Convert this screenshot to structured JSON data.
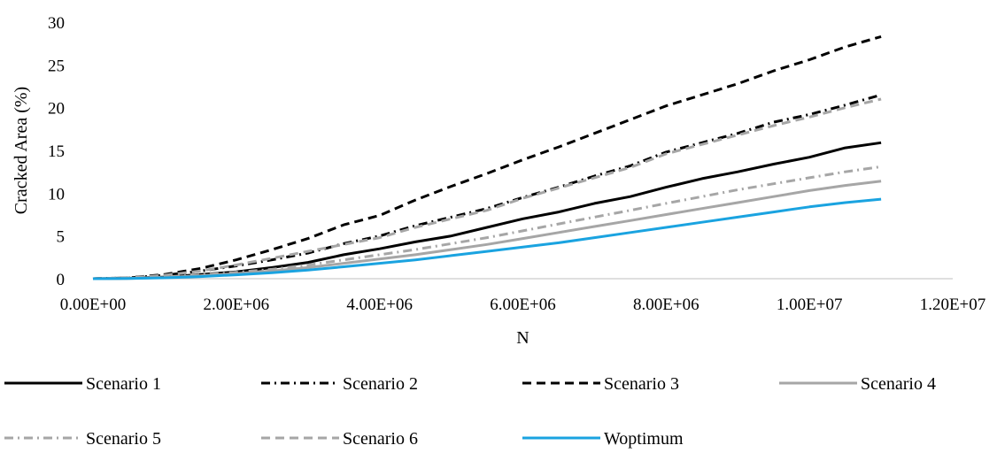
{
  "chart_data": {
    "type": "line",
    "title": "",
    "xlabel": "N",
    "ylabel": "Cracked Area (%)",
    "xlim": [
      0,
      12000000
    ],
    "ylim": [
      0,
      30
    ],
    "x_ticks": [
      0,
      2000000,
      4000000,
      6000000,
      8000000,
      10000000,
      12000000
    ],
    "x_tick_labels": [
      "0.00E+00",
      "2.00E+06",
      "4.00E+06",
      "6.00E+06",
      "8.00E+06",
      "1.00E+07",
      "1.20E+07"
    ],
    "y_ticks": [
      0,
      5,
      10,
      15,
      20,
      25,
      30
    ],
    "y_tick_labels": [
      "0",
      "5",
      "10",
      "15",
      "20",
      "25",
      "30"
    ],
    "grid": false,
    "legend_position": "bottom",
    "series": [
      {
        "name": "Scenario 1",
        "color": "#000000",
        "dash": "solid",
        "points": [
          [
            0,
            0
          ],
          [
            500000,
            0.05
          ],
          [
            1000000,
            0.2
          ],
          [
            1500000,
            0.5
          ],
          [
            2000000,
            0.8
          ],
          [
            2500000,
            1.3
          ],
          [
            3000000,
            1.9
          ],
          [
            3500000,
            2.8
          ],
          [
            4000000,
            3.5
          ],
          [
            4500000,
            4.3
          ],
          [
            5000000,
            5.0
          ],
          [
            5500000,
            6.0
          ],
          [
            6000000,
            7.0
          ],
          [
            6500000,
            7.8
          ],
          [
            7000000,
            8.8
          ],
          [
            7500000,
            9.6
          ],
          [
            8000000,
            10.7
          ],
          [
            8500000,
            11.7
          ],
          [
            9000000,
            12.5
          ],
          [
            9500000,
            13.4
          ],
          [
            10000000,
            14.2
          ],
          [
            10500000,
            15.3
          ],
          [
            11000000,
            15.9
          ]
        ]
      },
      {
        "name": "Scenario 2",
        "color": "#000000",
        "dash": "dashdot",
        "points": [
          [
            0,
            0
          ],
          [
            500000,
            0.1
          ],
          [
            1000000,
            0.4
          ],
          [
            1500000,
            0.9
          ],
          [
            2000000,
            1.5
          ],
          [
            2500000,
            2.2
          ],
          [
            3000000,
            3.0
          ],
          [
            3500000,
            4.1
          ],
          [
            4000000,
            5.0
          ],
          [
            4500000,
            6.2
          ],
          [
            5000000,
            7.2
          ],
          [
            5500000,
            8.2
          ],
          [
            6000000,
            9.5
          ],
          [
            6500000,
            10.7
          ],
          [
            7000000,
            12.0
          ],
          [
            7500000,
            13.2
          ],
          [
            8000000,
            14.8
          ],
          [
            8500000,
            15.9
          ],
          [
            9000000,
            17.0
          ],
          [
            9500000,
            18.3
          ],
          [
            10000000,
            19.2
          ],
          [
            10500000,
            20.3
          ],
          [
            11000000,
            21.5
          ]
        ]
      },
      {
        "name": "Scenario 3",
        "color": "#000000",
        "dash": "dash",
        "points": [
          [
            0,
            0
          ],
          [
            500000,
            0.1
          ],
          [
            1000000,
            0.5
          ],
          [
            1500000,
            1.2
          ],
          [
            2000000,
            2.2
          ],
          [
            2500000,
            3.4
          ],
          [
            3000000,
            4.7
          ],
          [
            3500000,
            6.3
          ],
          [
            4000000,
            7.4
          ],
          [
            4500000,
            9.2
          ],
          [
            5000000,
            10.8
          ],
          [
            5500000,
            12.3
          ],
          [
            6000000,
            13.9
          ],
          [
            6500000,
            15.4
          ],
          [
            7000000,
            17.0
          ],
          [
            7500000,
            18.6
          ],
          [
            8000000,
            20.2
          ],
          [
            8500000,
            21.5
          ],
          [
            9000000,
            22.8
          ],
          [
            9500000,
            24.3
          ],
          [
            10000000,
            25.6
          ],
          [
            10500000,
            27.1
          ],
          [
            11000000,
            28.3
          ]
        ]
      },
      {
        "name": "Scenario 4",
        "color": "#a6a6a6",
        "dash": "solid",
        "points": [
          [
            0,
            0
          ],
          [
            500000,
            0.03
          ],
          [
            1000000,
            0.15
          ],
          [
            1500000,
            0.35
          ],
          [
            2000000,
            0.6
          ],
          [
            2500000,
            0.9
          ],
          [
            3000000,
            1.3
          ],
          [
            3500000,
            1.8
          ],
          [
            4000000,
            2.3
          ],
          [
            4500000,
            2.8
          ],
          [
            5000000,
            3.4
          ],
          [
            5500000,
            4.0
          ],
          [
            6000000,
            4.7
          ],
          [
            6500000,
            5.4
          ],
          [
            7000000,
            6.1
          ],
          [
            7500000,
            6.8
          ],
          [
            8000000,
            7.5
          ],
          [
            8500000,
            8.2
          ],
          [
            9000000,
            8.9
          ],
          [
            9500000,
            9.6
          ],
          [
            10000000,
            10.3
          ],
          [
            10500000,
            10.9
          ],
          [
            11000000,
            11.4
          ]
        ]
      },
      {
        "name": "Scenario 5",
        "color": "#a6a6a6",
        "dash": "dashdot",
        "points": [
          [
            0,
            0
          ],
          [
            500000,
            0.04
          ],
          [
            1000000,
            0.2
          ],
          [
            1500000,
            0.45
          ],
          [
            2000000,
            0.75
          ],
          [
            2500000,
            1.1
          ],
          [
            3000000,
            1.6
          ],
          [
            3500000,
            2.2
          ],
          [
            4000000,
            2.8
          ],
          [
            4500000,
            3.4
          ],
          [
            5000000,
            4.1
          ],
          [
            5500000,
            4.8
          ],
          [
            6000000,
            5.6
          ],
          [
            6500000,
            6.4
          ],
          [
            7000000,
            7.2
          ],
          [
            7500000,
            8.0
          ],
          [
            8000000,
            8.8
          ],
          [
            8500000,
            9.6
          ],
          [
            9000000,
            10.4
          ],
          [
            9500000,
            11.1
          ],
          [
            10000000,
            11.8
          ],
          [
            10500000,
            12.5
          ],
          [
            11000000,
            13.1
          ]
        ]
      },
      {
        "name": "Scenario 6",
        "color": "#a6a6a6",
        "dash": "dash",
        "points": [
          [
            0,
            0
          ],
          [
            500000,
            0.1
          ],
          [
            1000000,
            0.4
          ],
          [
            1500000,
            0.9
          ],
          [
            2000000,
            1.6
          ],
          [
            2500000,
            2.4
          ],
          [
            3000000,
            3.2
          ],
          [
            3500000,
            4.0
          ],
          [
            4000000,
            4.8
          ],
          [
            4500000,
            6.0
          ],
          [
            5000000,
            7.0
          ],
          [
            5500000,
            8.0
          ],
          [
            6000000,
            9.4
          ],
          [
            6500000,
            10.6
          ],
          [
            7000000,
            11.8
          ],
          [
            7500000,
            13.0
          ],
          [
            8000000,
            14.6
          ],
          [
            8500000,
            15.7
          ],
          [
            9000000,
            16.8
          ],
          [
            9500000,
            17.9
          ],
          [
            10000000,
            18.9
          ],
          [
            10500000,
            20.0
          ],
          [
            11000000,
            21.0
          ]
        ]
      },
      {
        "name": "Woptimum",
        "color": "#1aa3e0",
        "dash": "solid",
        "points": [
          [
            0,
            0
          ],
          [
            500000,
            0.02
          ],
          [
            1000000,
            0.1
          ],
          [
            1500000,
            0.25
          ],
          [
            2000000,
            0.45
          ],
          [
            2500000,
            0.7
          ],
          [
            3000000,
            1.0
          ],
          [
            3500000,
            1.4
          ],
          [
            4000000,
            1.8
          ],
          [
            4500000,
            2.2
          ],
          [
            5000000,
            2.7
          ],
          [
            5500000,
            3.2
          ],
          [
            6000000,
            3.7
          ],
          [
            6500000,
            4.2
          ],
          [
            7000000,
            4.8
          ],
          [
            7500000,
            5.4
          ],
          [
            8000000,
            6.0
          ],
          [
            8500000,
            6.6
          ],
          [
            9000000,
            7.2
          ],
          [
            9500000,
            7.8
          ],
          [
            10000000,
            8.4
          ],
          [
            10500000,
            8.9
          ],
          [
            11000000,
            9.3
          ]
        ]
      }
    ]
  }
}
